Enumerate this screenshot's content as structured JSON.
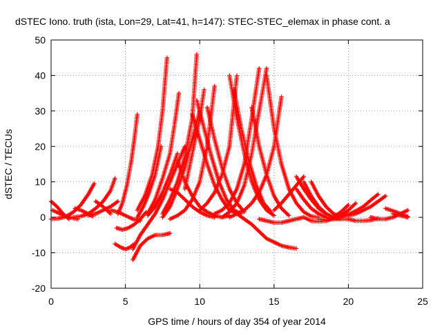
{
  "chart_data": {
    "type": "scatter",
    "title": "dSTEC Iono. truth (ista, Lon=29, Lat=41, h=147): STEC-STEC_elemax in phase cont. a",
    "xlabel": "GPS time / hours of day 354 of year 2014",
    "ylabel": "dSTEC  / TECUs",
    "xlim": [
      0,
      25
    ],
    "ylim": [
      -20,
      50
    ],
    "x_ticks": [
      0,
      5,
      10,
      15,
      20,
      25
    ],
    "y_ticks": [
      -20,
      -10,
      0,
      10,
      20,
      30,
      40,
      50
    ],
    "grid": true,
    "marker": "plus",
    "color": "#ff0000",
    "series": [
      {
        "x": [
          0.0,
          0.5,
          1.0,
          1.5,
          2.0,
          2.5,
          2.9
        ],
        "y": [
          -0.5,
          -0.3,
          0.2,
          1.5,
          3.5,
          6.5,
          9.5
        ]
      },
      {
        "x": [
          0.0,
          0.4,
          0.8,
          1.2
        ],
        "y": [
          4.5,
          3.0,
          1.0,
          -0.5
        ]
      },
      {
        "x": [
          0.1,
          0.6,
          1.2,
          1.8
        ],
        "y": [
          2.0,
          1.0,
          0.0,
          -0.5
        ]
      },
      {
        "x": [
          1.5,
          2.0,
          2.5,
          3.0,
          3.5,
          4.0,
          4.3
        ],
        "y": [
          0.0,
          0.3,
          1.0,
          2.5,
          4.5,
          7.5,
          11.0
        ]
      },
      {
        "x": [
          1.6,
          2.0,
          2.4,
          2.8
        ],
        "y": [
          2.5,
          2.0,
          1.2,
          0.3
        ]
      },
      {
        "x": [
          2.5,
          3.0,
          3.5,
          4.0,
          4.5
        ],
        "y": [
          0.5,
          1.0,
          2.0,
          3.0,
          4.5
        ]
      },
      {
        "x": [
          3.0,
          3.5,
          4.0
        ],
        "y": [
          4.5,
          3.0,
          1.0
        ]
      },
      {
        "x": [
          4.0,
          4.5,
          5.0,
          5.5,
          6.0
        ],
        "y": [
          2.0,
          1.5,
          0.5,
          -0.5,
          -1.0
        ]
      },
      {
        "x": [
          4.4,
          4.8,
          5.2,
          5.6,
          6.0,
          6.4
        ],
        "y": [
          -3.0,
          -3.5,
          -3.0,
          -2.0,
          -0.5,
          1.5
        ]
      },
      {
        "x": [
          4.3,
          4.7,
          5.0,
          5.3,
          5.6
        ],
        "y": [
          -7.5,
          -8.5,
          -9.0,
          -8.5,
          -7.5
        ]
      },
      {
        "x": [
          4.5,
          4.8,
          5.1,
          5.4,
          5.6,
          5.8
        ],
        "y": [
          1.0,
          4.0,
          9.0,
          16.0,
          22.0,
          29.0
        ]
      },
      {
        "x": [
          5.5,
          6.0,
          6.5,
          7.0,
          7.5,
          8.0
        ],
        "y": [
          -12.0,
          -8.0,
          -6.0,
          -5.0,
          -5.0,
          -4.5
        ]
      },
      {
        "x": [
          5.5,
          6.0,
          6.5,
          7.0,
          7.5,
          8.0,
          8.5,
          9.0
        ],
        "y": [
          -9.0,
          -5.0,
          -2.0,
          1.0,
          5.0,
          10.0,
          15.0,
          20.0
        ]
      },
      {
        "x": [
          5.8,
          6.3,
          6.8,
          7.2,
          7.5,
          7.8
        ],
        "y": [
          2.0,
          6.0,
          12.0,
          20.0,
          30.0,
          45.0
        ]
      },
      {
        "x": [
          5.8,
          6.2,
          6.6,
          7.0,
          7.4
        ],
        "y": [
          0.0,
          3.0,
          7.0,
          12.0,
          20.0
        ]
      },
      {
        "x": [
          6.5,
          7.0,
          7.5,
          8.0,
          8.5
        ],
        "y": [
          0.5,
          3.0,
          7.0,
          12.0,
          18.0
        ]
      },
      {
        "x": [
          6.5,
          7.0,
          7.5,
          8.0,
          8.3,
          8.6
        ],
        "y": [
          1.0,
          5.0,
          11.0,
          18.0,
          26.0,
          35.0
        ]
      },
      {
        "x": [
          7.5,
          8.0,
          8.5,
          9.0,
          9.5,
          9.8
        ],
        "y": [
          1.0,
          5.0,
          10.0,
          17.0,
          28.0,
          46.0
        ]
      },
      {
        "x": [
          7.5,
          8.0,
          8.5,
          9.0,
          9.5,
          10.0
        ],
        "y": [
          0.0,
          3.0,
          8.0,
          14.0,
          22.0,
          30.0
        ]
      },
      {
        "x": [
          8.0,
          8.5,
          9.0,
          9.5,
          10.0,
          10.5,
          11.0
        ],
        "y": [
          8.0,
          7.0,
          5.0,
          3.0,
          1.5,
          0.5,
          0.0
        ]
      },
      {
        "x": [
          8.5,
          9.0,
          9.5,
          10.0,
          10.5,
          11.0,
          11.5,
          12.0
        ],
        "y": [
          16.0,
          10.0,
          6.0,
          3.0,
          1.5,
          0.5,
          0.0,
          0.5
        ]
      },
      {
        "x": [
          8.0,
          8.5,
          9.0,
          9.5,
          10.0,
          10.5,
          11.0
        ],
        "y": [
          -0.5,
          0.5,
          2.0,
          5.0,
          10.0,
          20.0,
          37.0
        ]
      },
      {
        "x": [
          9.0,
          9.5,
          10.0,
          10.3
        ],
        "y": [
          8.0,
          18.0,
          28.0,
          36.0
        ]
      },
      {
        "x": [
          9.5,
          10.0,
          10.5,
          11.0,
          11.5,
          12.0,
          12.5
        ],
        "y": [
          29.0,
          22.0,
          15.0,
          9.0,
          5.0,
          2.0,
          1.0
        ]
      },
      {
        "x": [
          9.8,
          10.3,
          10.8,
          11.3,
          11.8,
          12.3,
          12.8
        ],
        "y": [
          33.0,
          25.0,
          17.0,
          10.0,
          5.0,
          2.0,
          1.0
        ]
      },
      {
        "x": [
          10.0,
          10.5,
          11.0,
          11.5,
          12.0,
          12.5
        ],
        "y": [
          2.0,
          4.0,
          7.0,
          12.0,
          20.0,
          40.0
        ]
      },
      {
        "x": [
          10.5,
          11.0,
          11.5,
          12.0,
          12.5,
          13.0
        ],
        "y": [
          31.0,
          22.0,
          14.0,
          8.0,
          4.0,
          1.5
        ]
      },
      {
        "x": [
          11.0,
          11.5,
          12.0,
          12.5,
          13.0,
          13.5,
          14.0
        ],
        "y": [
          1.0,
          2.0,
          4.0,
          8.0,
          15.0,
          28.0,
          42.0
        ]
      },
      {
        "x": [
          11.5,
          12.0,
          12.5,
          13.0,
          13.5,
          14.0,
          14.5
        ],
        "y": [
          0.0,
          1.5,
          4.0,
          9.0,
          18.0,
          30.0,
          42.0
        ]
      },
      {
        "x": [
          12.0,
          12.5,
          13.0,
          13.5,
          14.0,
          14.5,
          15.0
        ],
        "y": [
          40.0,
          28.0,
          18.0,
          10.0,
          5.0,
          2.0,
          0.5
        ]
      },
      {
        "x": [
          12.3,
          12.8,
          13.3,
          13.8,
          14.3,
          14.8
        ],
        "y": [
          36.0,
          25.0,
          16.0,
          9.0,
          4.0,
          1.5
        ]
      },
      {
        "x": [
          12.5,
          13.0,
          13.5,
          14.0,
          14.5,
          15.0,
          15.5,
          16.0,
          16.5
        ],
        "y": [
          1.0,
          -0.5,
          -2.0,
          -4.0,
          -6.0,
          -7.0,
          -8.0,
          -8.5,
          -8.8
        ]
      },
      {
        "x": [
          12.0,
          12.5,
          13.0,
          13.5,
          14.0,
          14.5,
          15.0,
          15.5
        ],
        "y": [
          0.0,
          1.0,
          2.0,
          4.0,
          7.0,
          12.0,
          20.0,
          34.0
        ]
      },
      {
        "x": [
          13.5,
          14.0,
          14.5,
          15.0,
          15.5,
          16.0
        ],
        "y": [
          31.0,
          20.0,
          12.0,
          6.0,
          2.5,
          0.5
        ]
      },
      {
        "x": [
          14.5,
          15.0,
          15.5,
          16.0,
          16.5,
          17.0,
          17.5,
          18.0
        ],
        "y": [
          40.0,
          25.0,
          15.0,
          8.0,
          4.0,
          1.5,
          0.3,
          0.0
        ]
      },
      {
        "x": [
          14.0,
          14.5,
          15.0,
          15.5,
          16.0,
          16.5,
          17.0
        ],
        "y": [
          -0.5,
          -1.0,
          -1.5,
          -1.5,
          -1.0,
          -0.5,
          0.0
        ]
      },
      {
        "x": [
          15.0,
          15.5,
          16.0,
          16.5,
          17.0
        ],
        "y": [
          2.0,
          4.0,
          6.5,
          9.0,
          11.5
        ]
      },
      {
        "x": [
          16.5,
          17.0,
          17.5,
          18.0,
          18.5
        ],
        "y": [
          11.5,
          8.0,
          5.0,
          2.5,
          1.0
        ]
      },
      {
        "x": [
          16.5,
          17.0,
          17.5,
          18.0,
          18.5,
          19.0,
          19.5
        ],
        "y": [
          8.0,
          5.0,
          2.5,
          1.0,
          0.0,
          -0.5,
          -0.5
        ]
      },
      {
        "x": [
          17.0,
          17.5,
          18.0,
          18.5,
          19.0,
          19.5,
          20.0
        ],
        "y": [
          10.0,
          6.0,
          3.0,
          1.0,
          0.0,
          -0.5,
          -0.5
        ]
      },
      {
        "x": [
          17.5,
          18.0,
          18.5,
          19.0,
          19.5
        ],
        "y": [
          10.0,
          6.0,
          3.0,
          1.0,
          0.0
        ]
      },
      {
        "x": [
          17.0,
          17.5,
          18.0,
          18.5,
          19.0,
          19.5,
          20.0
        ],
        "y": [
          0.0,
          -1.0,
          -1.2,
          -1.0,
          0.0,
          1.5,
          3.5
        ]
      },
      {
        "x": [
          18.0,
          18.5,
          19.0,
          19.5,
          20.0,
          20.5
        ],
        "y": [
          -0.5,
          -0.8,
          -0.5,
          0.5,
          2.0,
          4.0
        ]
      },
      {
        "x": [
          19.0,
          19.5,
          20.0,
          20.5,
          21.0,
          21.5,
          22.0
        ],
        "y": [
          0.0,
          0.2,
          0.8,
          1.8,
          3.0,
          4.8,
          6.5
        ]
      },
      {
        "x": [
          20.0,
          20.5,
          21.0,
          21.5,
          22.0,
          22.5
        ],
        "y": [
          0.5,
          1.0,
          2.0,
          3.0,
          4.5,
          6.0
        ]
      },
      {
        "x": [
          20.0,
          20.5,
          21.0,
          21.5,
          22.0
        ],
        "y": [
          -0.5,
          -1.0,
          -1.0,
          -0.8,
          -0.3
        ]
      },
      {
        "x": [
          21.5,
          22.0,
          22.5,
          23.0,
          23.5,
          24.0
        ],
        "y": [
          0.0,
          -0.5,
          -0.5,
          0.0,
          1.0,
          2.0
        ]
      },
      {
        "x": [
          22.5,
          23.0,
          23.5,
          24.0
        ],
        "y": [
          2.5,
          1.8,
          1.0,
          0.2
        ]
      },
      {
        "x": [
          23.0,
          23.5,
          24.0
        ],
        "y": [
          1.0,
          0.5,
          0.0
        ]
      }
    ]
  }
}
